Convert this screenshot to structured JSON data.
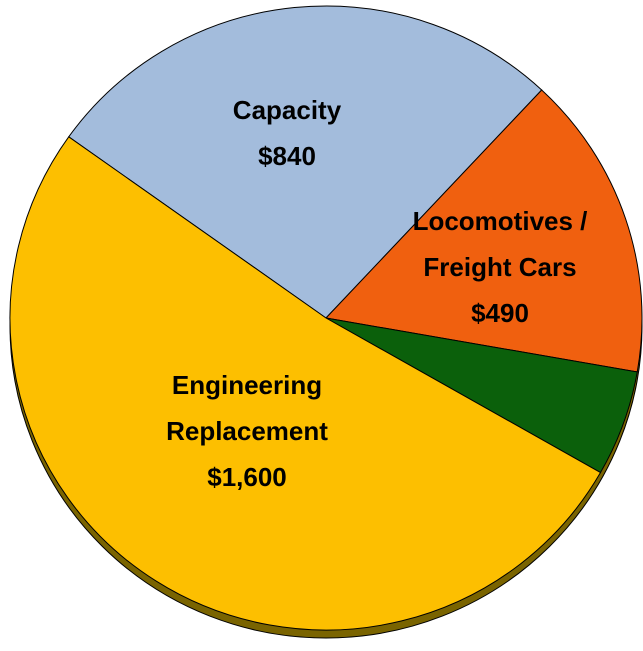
{
  "chart_data": {
    "type": "pie",
    "categories": [
      "Capacity",
      "Locomotives / Freight Cars",
      null,
      "Engineering Replacement"
    ],
    "values": [
      840,
      490,
      170,
      1600
    ],
    "value_labels": [
      "$840",
      "$490",
      null,
      "$1,600"
    ],
    "colors": [
      "#a3bcdc",
      "#f0600f",
      "#0b600b",
      "#fdbf00"
    ]
  }
}
